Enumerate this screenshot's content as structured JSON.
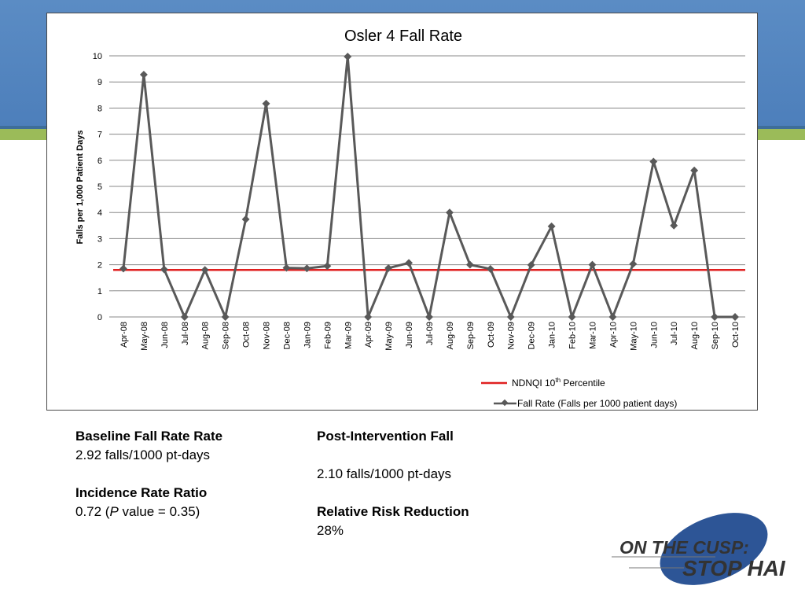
{
  "chart_data": {
    "type": "line",
    "title": "Osler 4 Fall Rate",
    "ylabel": "Falls per 1,000 Patient Days",
    "xlabel": "",
    "ylim": [
      0,
      10
    ],
    "yticks": [
      "0",
      "1",
      "2",
      "3",
      "4",
      "5",
      "6",
      "7",
      "8",
      "9",
      "10"
    ],
    "grid": true,
    "legend_position": "bottom-right",
    "categories": [
      "Apr-08",
      "May-08",
      "Jun-08",
      "Jul-08",
      "Aug-08",
      "Sep-08",
      "Oct-08",
      "Nov-08",
      "Dec-08",
      "Jan-09",
      "Feb-09",
      "Mar-09",
      "Apr-09",
      "May-09",
      "Jun-09",
      "Jul-09",
      "Aug-09",
      "Sep-09",
      "Oct-09",
      "Nov-09",
      "Dec-09",
      "Jan-10",
      "Feb-10",
      "Mar-10",
      "Apr-10",
      "May-10",
      "Jun-10",
      "Jul-10",
      "Aug-10",
      "Sep-10",
      "Oct-10"
    ],
    "series": [
      {
        "name": "Fall Rate (Falls per 1000 patient days)",
        "color": "#595959",
        "marker": "diamond",
        "values": [
          1.85,
          9.28,
          1.82,
          0,
          1.8,
          0,
          3.74,
          8.17,
          1.88,
          1.86,
          1.95,
          9.97,
          0,
          1.87,
          2.07,
          0,
          4.0,
          2.0,
          1.84,
          0,
          1.99,
          3.47,
          0,
          2.0,
          0,
          2.03,
          5.95,
          3.5,
          5.61,
          0,
          0
        ]
      }
    ],
    "reference_line": {
      "name": "NDNQI 10",
      "name_sup": "th",
      "name_suffix": " Percentile",
      "value": 1.8,
      "color": "#e02020"
    }
  },
  "stats": {
    "baseline_label": "Baseline Fall Rate Rate",
    "baseline_value": "2.92 falls/1000 pt-days",
    "post_label": "Post-Intervention Fall",
    "post_value": "2.10 falls/1000 pt-days",
    "irr_label": "Incidence Rate Ratio",
    "irr_value_prefix": "0.72 (",
    "irr_value_p": "P",
    "irr_value_suffix": " value = 0.35)",
    "rrr_label": "Relative Risk Reduction",
    "rrr_value": "28%"
  },
  "logo": {
    "line1": "ON THE CUSP:",
    "line2": "STOP HAI",
    "colors": {
      "oval": "#2d5596",
      "text": "#333333",
      "text_on_oval": "#ffffff"
    }
  },
  "theme": {
    "band_blue": "#4d7fbb",
    "band_green": "#9bbb59",
    "line": "#595959",
    "grid": "#888888"
  }
}
